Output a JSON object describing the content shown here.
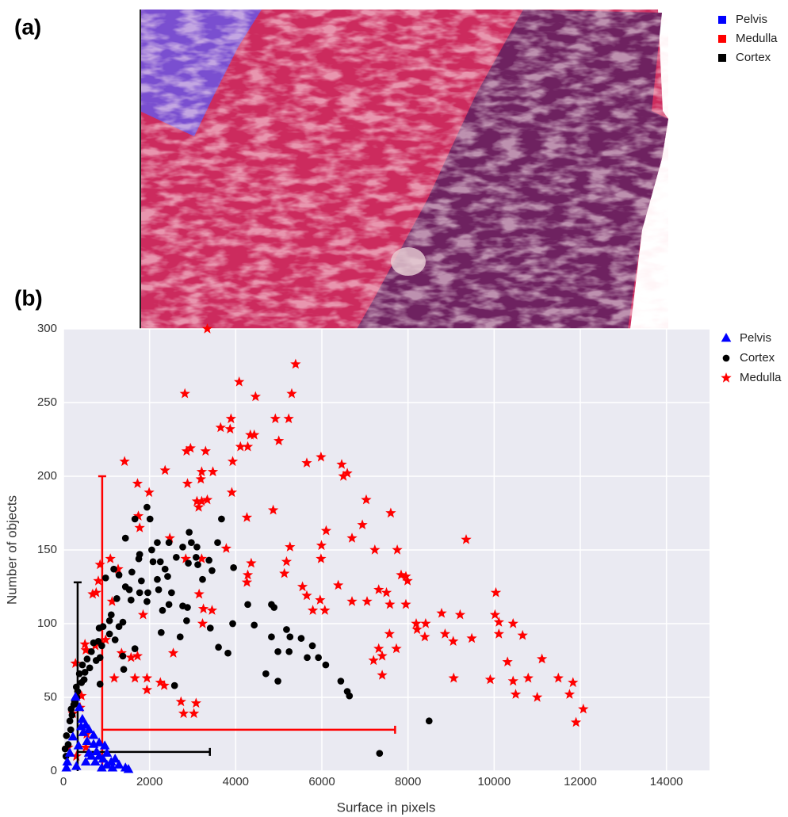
{
  "panel_labels": [
    "(a)",
    "(b)"
  ],
  "image_legend": [
    {
      "name": "Pelvis",
      "color": "#0000ff"
    },
    {
      "name": "Medulla",
      "color": "#ff0000"
    },
    {
      "name": "Cortex",
      "color": "#000000"
    }
  ],
  "chart_data": {
    "type": "scatter",
    "xlabel": "Surface in pixels",
    "ylabel": "Number of objects",
    "xlim": [
      0,
      15000
    ],
    "ylim": [
      0,
      300
    ],
    "xticks": [
      0,
      2000,
      4000,
      6000,
      8000,
      10000,
      12000,
      14000
    ],
    "yticks": [
      0,
      50,
      100,
      150,
      200,
      250,
      300
    ],
    "grid": true,
    "legend": "outside-right",
    "series": [
      {
        "name": "Medulla",
        "color": "#ff0000",
        "marker": "star",
        "x": [
          3340,
          5390,
          4080,
          5300,
          2820,
          4460,
          3890,
          4920,
          5230,
          3870,
          3650,
          4430,
          4340,
          4110,
          4280,
          3300,
          2860,
          2950,
          5000,
          1420,
          5980,
          2360,
          5650,
          3930,
          6460,
          6500,
          6590,
          3210,
          3470,
          1720,
          1990,
          3190,
          2880,
          3340,
          3100,
          3210,
          3910,
          4260,
          1740,
          7030,
          7600,
          6100,
          3140,
          1770,
          6700,
          9350,
          6940,
          5260,
          5990,
          7230,
          7750,
          4870,
          2470,
          5980,
          1090,
          1270,
          2840,
          3780,
          4360,
          5180,
          5130,
          4280,
          4260,
          3210,
          7840,
          7950,
          7990,
          6380,
          5550,
          5650,
          5960,
          7320,
          7500,
          6700,
          7050,
          7580,
          7950,
          5790,
          6070,
          810,
          680,
          850,
          760,
          10040,
          9210,
          8780,
          10020,
          10110,
          10440,
          8190,
          8410,
          8210,
          8860,
          8390,
          9050,
          9480,
          10110,
          10660,
          11110,
          10310,
          7320,
          7730,
          7400,
          7570,
          7200,
          9910,
          10440,
          10790,
          11490,
          11830,
          11750,
          10500,
          11000,
          11900,
          12070,
          9060,
          7400,
          1350,
          1720,
          2550,
          1850,
          2340,
          2730,
          3080,
          2790,
          3030,
          2250,
          1940,
          1940,
          1660,
          1570,
          3150,
          3250,
          3450,
          3230,
          740,
          980,
          1130,
          500,
          280,
          220,
          420,
          390,
          110,
          300,
          520,
          540,
          1180,
          520
        ],
        "values": [
          300,
          276,
          264,
          256,
          256,
          254,
          239,
          239,
          239,
          232,
          233,
          228,
          228,
          220,
          220,
          217,
          217,
          219,
          224,
          210,
          213,
          204,
          209,
          210,
          208,
          200,
          202,
          203,
          203,
          195,
          189,
          198,
          195,
          184,
          183,
          183,
          189,
          172,
          173,
          184,
          175,
          163,
          179,
          165,
          158,
          157,
          167,
          152,
          153,
          150,
          150,
          177,
          158,
          144,
          144,
          137,
          144,
          151,
          141,
          142,
          134,
          133,
          128,
          144,
          133,
          132,
          129,
          126,
          125,
          119,
          116,
          123,
          121,
          115,
          115,
          113,
          113,
          109,
          109,
          129,
          120,
          140,
          121,
          121,
          106,
          107,
          106,
          101,
          100,
          100,
          100,
          96,
          93,
          91,
          88,
          90,
          93,
          92,
          76,
          74,
          83,
          83,
          78,
          93,
          75,
          62,
          61,
          63,
          63,
          60,
          52,
          52,
          50,
          33,
          42,
          63,
          65,
          80,
          78,
          80,
          106,
          58,
          47,
          46,
          39,
          39,
          60,
          63,
          55,
          63,
          77,
          120,
          110,
          109,
          100,
          85,
          89,
          115,
          86,
          73,
          39,
          51,
          43,
          16,
          10,
          16,
          25,
          63,
          82
        ],
        "cross": {
          "x": 900,
          "y": 28,
          "y_range": [
            0,
            200
          ],
          "x_range": [
            900,
            7700
          ]
        }
      },
      {
        "name": "Cortex",
        "color": "#000000",
        "marker": "circle",
        "x": [
          1940,
          1660,
          2010,
          3670,
          2920,
          2450,
          2970,
          2770,
          3580,
          3100,
          1440,
          2180,
          1770,
          2050,
          1750,
          2080,
          2620,
          2250,
          2360,
          3080,
          3380,
          3120,
          2900,
          3950,
          3450,
          3230,
          2180,
          2420,
          1810,
          1590,
          1290,
          1170,
          980,
          1440,
          1530,
          1960,
          1770,
          1570,
          1940,
          2210,
          2510,
          2450,
          2770,
          2880,
          4280,
          4830,
          4890,
          2860,
          2300,
          2270,
          2710,
          3410,
          3930,
          4430,
          4830,
          5180,
          5260,
          5520,
          5780,
          5920,
          6090,
          5240,
          5660,
          4980,
          4700,
          4980,
          3600,
          3820,
          6440,
          6590,
          6640,
          7340,
          8490,
          2580,
          1660,
          1380,
          1070,
          920,
          1110,
          830,
          810,
          700,
          650,
          550,
          440,
          370,
          480,
          300,
          310,
          240,
          200,
          170,
          110,
          60,
          890,
          1290,
          1070,
          1200,
          850,
          760,
          610,
          500,
          420,
          330,
          260,
          180,
          150,
          70,
          40,
          850,
          1400,
          1240,
          1380
        ],
        "values": [
          179,
          171,
          171,
          171,
          162,
          155,
          155,
          152,
          155,
          152,
          158,
          155,
          147,
          150,
          144,
          142,
          145,
          142,
          137,
          145,
          143,
          140,
          141,
          138,
          136,
          130,
          130,
          132,
          129,
          135,
          133,
          137,
          131,
          125,
          123,
          121,
          121,
          116,
          115,
          123,
          121,
          113,
          112,
          111,
          113,
          113,
          111,
          102,
          109,
          94,
          91,
          97,
          100,
          99,
          91,
          96,
          91,
          90,
          85,
          77,
          72,
          81,
          77,
          81,
          66,
          61,
          84,
          80,
          61,
          54,
          51,
          12,
          34,
          58,
          83,
          78,
          93,
          98,
          106,
          97,
          88,
          87,
          81,
          76,
          72,
          66,
          62,
          57,
          50,
          45,
          38,
          28,
          18,
          10,
          85,
          98,
          102,
          89,
          77,
          75,
          70,
          67,
          60,
          54,
          47,
          42,
          34,
          24,
          15,
          59,
          69,
          117,
          101
        ],
        "cross": {
          "x": 330,
          "y": 13,
          "y_range": [
            0,
            128
          ],
          "x_range": [
            330,
            3400
          ]
        }
      },
      {
        "name": "Pelvis",
        "color": "#0000ff",
        "marker": "triangle",
        "x": [
          280,
          370,
          440,
          520,
          590,
          460,
          550,
          700,
          770,
          830,
          920,
          1010,
          1110,
          1290,
          1440,
          1510,
          350,
          220,
          150,
          90,
          70,
          650,
          740,
          890,
          1200,
          1010,
          520,
          300,
          410,
          700,
          830,
          960,
          590,
          1140
        ],
        "values": [
          50,
          43,
          35,
          31,
          28,
          26,
          20,
          18,
          13,
          10,
          8,
          4,
          6,
          4,
          2,
          1,
          17,
          23,
          12,
          6,
          2,
          10,
          6,
          2,
          8,
          12,
          6,
          3,
          30,
          24,
          19,
          17,
          12,
          2
        ]
      }
    ]
  }
}
